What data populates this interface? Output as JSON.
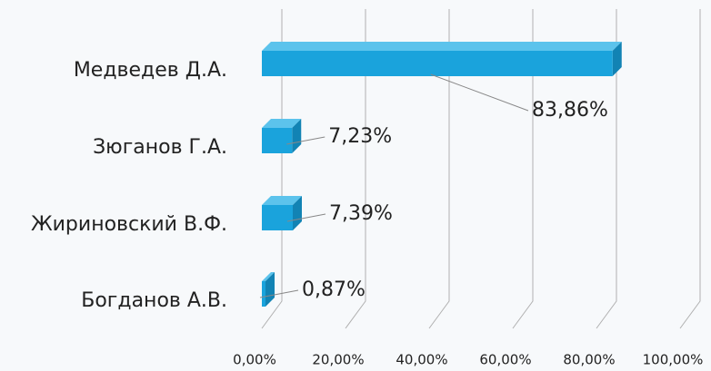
{
  "chart_data": {
    "type": "bar3d",
    "categories": [
      "Медведев Д.А.",
      "Зюганов Г.А.",
      "Жириновский В.Ф.",
      "Богданов А.В."
    ],
    "values": [
      83.86,
      7.23,
      7.39,
      0.87
    ],
    "value_labels": [
      "83,86%",
      "7,23%",
      "7,39%",
      "0,87%"
    ],
    "color": "#1aa3dc",
    "xlim": [
      0,
      100
    ],
    "xticks": [
      {
        "value": 0,
        "label": "0,00%"
      },
      {
        "value": 20,
        "label": "20,00%"
      },
      {
        "value": 40,
        "label": "40,00%"
      },
      {
        "value": 60,
        "label": "60,00%"
      },
      {
        "value": 80,
        "label": "80,00%"
      },
      {
        "value": 100,
        "label": "100,00%"
      }
    ],
    "grid": true
  }
}
